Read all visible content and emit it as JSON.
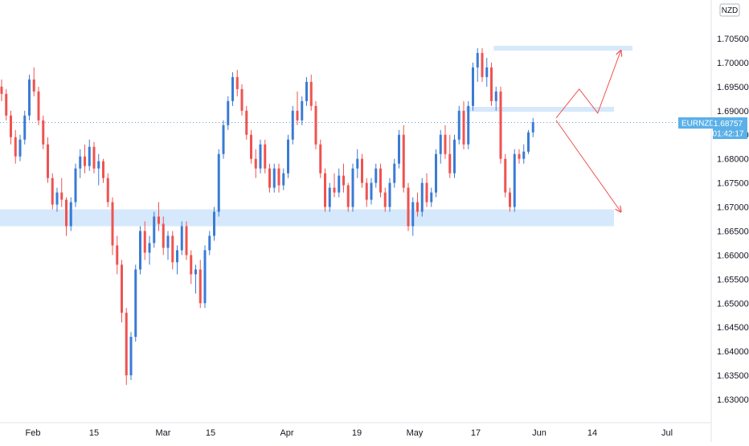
{
  "currency_badge": "NZD",
  "symbol_label": {
    "symbol": "EURNZD",
    "last_price": "1.68757",
    "countdown": "01:42:17",
    "color": "#5bb0e8"
  },
  "colors": {
    "up": "#3a7bd5",
    "down": "#ef5350",
    "zone": "#d6e8fb",
    "arrow": "#ef5350",
    "axis_text": "#131722",
    "last_price_line": "#3a7bd5"
  },
  "chart_data": {
    "type": "candlestick",
    "ylim": [
      1.625,
      1.715
    ],
    "y_ticks": [
      "1.70500",
      "1.70000",
      "1.69500",
      "1.69000",
      "1.68500",
      "1.68000",
      "1.67500",
      "1.67000",
      "1.66500",
      "1.66000",
      "1.65500",
      "1.65000",
      "1.64500",
      "1.64000",
      "1.63500",
      "1.63000"
    ],
    "x_ticks": [
      "Feb",
      "15",
      "Mar",
      "15",
      "Apr",
      "19",
      "May",
      "17",
      "Jun",
      "14",
      "Jul"
    ],
    "last_price": 1.68757,
    "candles": [
      [
        1.695,
        1.6965,
        1.692,
        1.6935
      ],
      [
        1.6935,
        1.6945,
        1.688,
        1.689
      ],
      [
        1.689,
        1.69,
        1.683,
        1.6845
      ],
      [
        1.6845,
        1.686,
        1.679,
        1.6805
      ],
      [
        1.6805,
        1.685,
        1.6795,
        1.684
      ],
      [
        1.684,
        1.69,
        1.683,
        1.689
      ],
      [
        1.689,
        1.6975,
        1.688,
        1.6965
      ],
      [
        1.6965,
        1.699,
        1.693,
        1.694
      ],
      [
        1.694,
        1.695,
        1.687,
        1.688
      ],
      [
        1.688,
        1.689,
        1.682,
        1.683
      ],
      [
        1.683,
        1.6845,
        1.675,
        1.676
      ],
      [
        1.676,
        1.677,
        1.6695,
        1.6705
      ],
      [
        1.6705,
        1.674,
        1.669,
        1.673
      ],
      [
        1.673,
        1.676,
        1.67,
        1.6715
      ],
      [
        1.6715,
        1.672,
        1.664,
        1.666
      ],
      [
        1.666,
        1.672,
        1.665,
        1.671
      ],
      [
        1.671,
        1.679,
        1.67,
        1.678
      ],
      [
        1.678,
        1.682,
        1.676,
        1.6805
      ],
      [
        1.6805,
        1.683,
        1.677,
        1.6785
      ],
      [
        1.6785,
        1.684,
        1.6775,
        1.6825
      ],
      [
        1.6825,
        1.6835,
        1.677,
        1.678
      ],
      [
        1.678,
        1.681,
        1.6745,
        1.6795
      ],
      [
        1.6795,
        1.68,
        1.675,
        1.676
      ],
      [
        1.676,
        1.677,
        1.67,
        1.671
      ],
      [
        1.671,
        1.672,
        1.66,
        1.662
      ],
      [
        1.662,
        1.664,
        1.656,
        1.658
      ],
      [
        1.658,
        1.659,
        1.646,
        1.648
      ],
      [
        1.648,
        1.649,
        1.633,
        1.635
      ],
      [
        1.635,
        1.644,
        1.634,
        1.643
      ],
      [
        1.643,
        1.658,
        1.642,
        1.657
      ],
      [
        1.657,
        1.666,
        1.656,
        1.665
      ],
      [
        1.665,
        1.667,
        1.659,
        1.6605
      ],
      [
        1.6605,
        1.664,
        1.658,
        1.6625
      ],
      [
        1.6625,
        1.669,
        1.6615,
        1.668
      ],
      [
        1.668,
        1.671,
        1.665,
        1.6665
      ],
      [
        1.6665,
        1.668,
        1.66,
        1.6615
      ],
      [
        1.6615,
        1.665,
        1.659,
        1.664
      ],
      [
        1.664,
        1.665,
        1.657,
        1.6585
      ],
      [
        1.6585,
        1.662,
        1.656,
        1.661
      ],
      [
        1.661,
        1.667,
        1.66,
        1.666
      ],
      [
        1.666,
        1.667,
        1.659,
        1.66
      ],
      [
        1.66,
        1.661,
        1.654,
        1.656
      ],
      [
        1.656,
        1.658,
        1.652,
        1.657
      ],
      [
        1.657,
        1.659,
        1.649,
        1.65
      ],
      [
        1.65,
        1.662,
        1.649,
        1.661
      ],
      [
        1.661,
        1.665,
        1.66,
        1.664
      ],
      [
        1.664,
        1.67,
        1.663,
        1.669
      ],
      [
        1.669,
        1.682,
        1.668,
        1.681
      ],
      [
        1.681,
        1.688,
        1.68,
        1.687
      ],
      [
        1.687,
        1.693,
        1.686,
        1.692
      ],
      [
        1.692,
        1.698,
        1.691,
        1.697
      ],
      [
        1.697,
        1.6985,
        1.693,
        1.6945
      ],
      [
        1.6945,
        1.6955,
        1.689,
        1.69
      ],
      [
        1.69,
        1.691,
        1.684,
        1.685
      ],
      [
        1.685,
        1.686,
        1.679,
        1.68
      ],
      [
        1.68,
        1.682,
        1.676,
        1.678
      ],
      [
        1.678,
        1.684,
        1.677,
        1.683
      ],
      [
        1.683,
        1.684,
        1.677,
        1.678
      ],
      [
        1.678,
        1.679,
        1.673,
        1.674
      ],
      [
        1.674,
        1.679,
        1.673,
        1.678
      ],
      [
        1.678,
        1.679,
        1.673,
        1.6745
      ],
      [
        1.6745,
        1.678,
        1.6735,
        1.677
      ],
      [
        1.677,
        1.685,
        1.676,
        1.684
      ],
      [
        1.684,
        1.691,
        1.683,
        1.69
      ],
      [
        1.69,
        1.694,
        1.687,
        1.688
      ],
      [
        1.688,
        1.693,
        1.687,
        1.692
      ],
      [
        1.692,
        1.697,
        1.691,
        1.696
      ],
      [
        1.696,
        1.6975,
        1.69,
        1.691
      ],
      [
        1.691,
        1.692,
        1.682,
        1.683
      ],
      [
        1.683,
        1.684,
        1.676,
        1.677
      ],
      [
        1.677,
        1.678,
        1.669,
        1.67
      ],
      [
        1.67,
        1.675,
        1.669,
        1.674
      ],
      [
        1.674,
        1.677,
        1.672,
        1.673
      ],
      [
        1.673,
        1.678,
        1.672,
        1.6765
      ],
      [
        1.6765,
        1.679,
        1.673,
        1.6745
      ],
      [
        1.6745,
        1.675,
        1.669,
        1.67
      ],
      [
        1.67,
        1.679,
        1.669,
        1.678
      ],
      [
        1.678,
        1.682,
        1.676,
        1.68
      ],
      [
        1.68,
        1.681,
        1.674,
        1.675
      ],
      [
        1.675,
        1.676,
        1.67,
        1.6715
      ],
      [
        1.6715,
        1.676,
        1.6705,
        1.675
      ],
      [
        1.675,
        1.679,
        1.674,
        1.678
      ],
      [
        1.678,
        1.679,
        1.672,
        1.673
      ],
      [
        1.673,
        1.674,
        1.669,
        1.67
      ],
      [
        1.67,
        1.676,
        1.669,
        1.675
      ],
      [
        1.675,
        1.68,
        1.674,
        1.679
      ],
      [
        1.679,
        1.686,
        1.678,
        1.685
      ],
      [
        1.685,
        1.687,
        1.673,
        1.674
      ],
      [
        1.674,
        1.675,
        1.665,
        1.666
      ],
      [
        1.666,
        1.672,
        1.664,
        1.671
      ],
      [
        1.671,
        1.673,
        1.668,
        1.669
      ],
      [
        1.669,
        1.676,
        1.668,
        1.675
      ],
      [
        1.675,
        1.677,
        1.67,
        1.671
      ],
      [
        1.671,
        1.674,
        1.67,
        1.673
      ],
      [
        1.673,
        1.682,
        1.672,
        1.681
      ],
      [
        1.681,
        1.686,
        1.679,
        1.685
      ],
      [
        1.685,
        1.687,
        1.68,
        1.681
      ],
      [
        1.681,
        1.685,
        1.676,
        1.677
      ],
      [
        1.677,
        1.685,
        1.676,
        1.684
      ],
      [
        1.684,
        1.691,
        1.683,
        1.69
      ],
      [
        1.69,
        1.692,
        1.682,
        1.683
      ],
      [
        1.683,
        1.692,
        1.682,
        1.691
      ],
      [
        1.691,
        1.7,
        1.69,
        1.699
      ],
      [
        1.699,
        1.703,
        1.696,
        1.702
      ],
      [
        1.702,
        1.703,
        1.696,
        1.697
      ],
      [
        1.697,
        1.701,
        1.695,
        1.699
      ],
      [
        1.699,
        1.7,
        1.691,
        1.692
      ],
      [
        1.692,
        1.695,
        1.69,
        1.694
      ],
      [
        1.694,
        1.695,
        1.679,
        1.68
      ],
      [
        1.68,
        1.681,
        1.672,
        1.673
      ],
      [
        1.673,
        1.674,
        1.669,
        1.67
      ],
      [
        1.67,
        1.682,
        1.669,
        1.681
      ],
      [
        1.681,
        1.682,
        1.679,
        1.68
      ],
      [
        1.68,
        1.683,
        1.679,
        1.6815
      ],
      [
        1.6815,
        1.686,
        1.681,
        1.6855
      ],
      [
        1.6855,
        1.6885,
        1.6845,
        1.6876
      ]
    ],
    "zones": [
      {
        "from": 1.666,
        "to": 1.6695,
        "x_start_index": 0,
        "x_end_index": 132
      },
      {
        "from": 1.6898,
        "to": 1.6908,
        "x_start_index": 101,
        "x_end_index": 132
      },
      {
        "from": 1.7025,
        "to": 1.7035,
        "x_start_index": 107,
        "x_end_index": 136
      }
    ],
    "projections": [
      {
        "points": [
          [
            120,
            1.6885
          ],
          [
            125,
            1.6945
          ],
          [
            129,
            1.6895
          ],
          [
            134,
            1.7025
          ]
        ]
      },
      {
        "points": [
          [
            120,
            1.688
          ],
          [
            134,
            1.669
          ]
        ]
      }
    ]
  }
}
